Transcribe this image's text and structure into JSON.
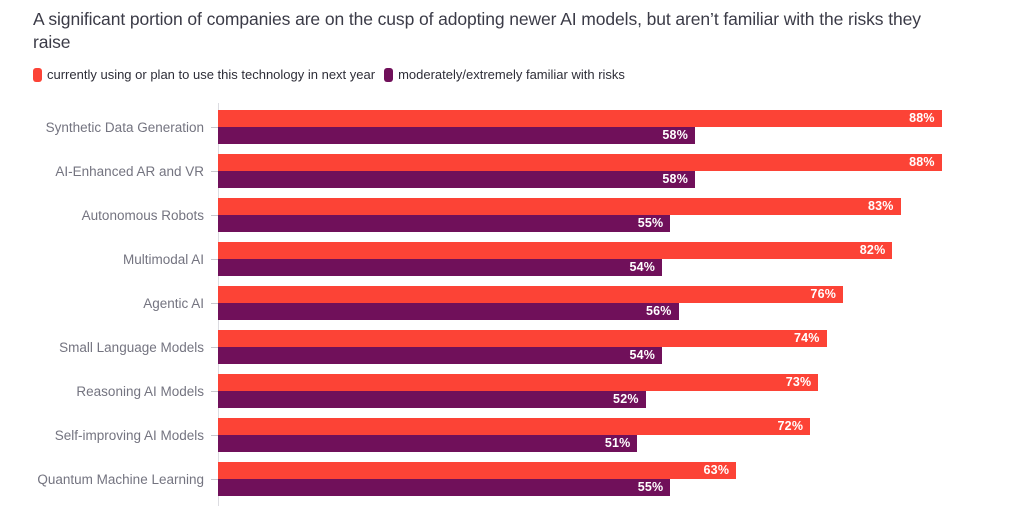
{
  "header": {
    "title": "A significant portion of companies are on the cusp of adopting newer AI models, but aren’t familiar with the risks they raise"
  },
  "colors": {
    "adoption_red": "#FC4336",
    "risk_purple": "#70105A",
    "title_text": "#3b3b47",
    "category_text": "#747480",
    "legend_text": "#2e2e38",
    "axis_line": "#dcdce1",
    "value_label_text": "#ffffff"
  },
  "chart_data": {
    "type": "bar",
    "orientation": "horizontal",
    "title": "A significant portion of companies are on the cusp of adopting newer AI models, but aren’t familiar with the risks they raise",
    "xlabel": "",
    "ylabel": "",
    "xlim": [
      0,
      98
    ],
    "grid": false,
    "legend_position": "top-left",
    "value_suffix": "%",
    "value_labels": "inside-end",
    "categories": [
      "Synthetic Data Generation",
      "AI-Enhanced AR and VR",
      "Autonomous Robots",
      "Multimodal AI",
      "Agentic AI",
      "Small Language Models",
      "Reasoning AI Models",
      "Self-improving AI Models",
      "Quantum Machine Learning"
    ],
    "series": [
      {
        "name": "currently using or plan to use this technology in next year",
        "color": "#FC4336",
        "values": [
          88,
          88,
          83,
          82,
          76,
          74,
          73,
          72,
          63
        ]
      },
      {
        "name": "moderately/extremely familiar with risks",
        "color": "#70105A",
        "values": [
          58,
          58,
          55,
          54,
          56,
          54,
          52,
          51,
          55
        ]
      }
    ]
  }
}
